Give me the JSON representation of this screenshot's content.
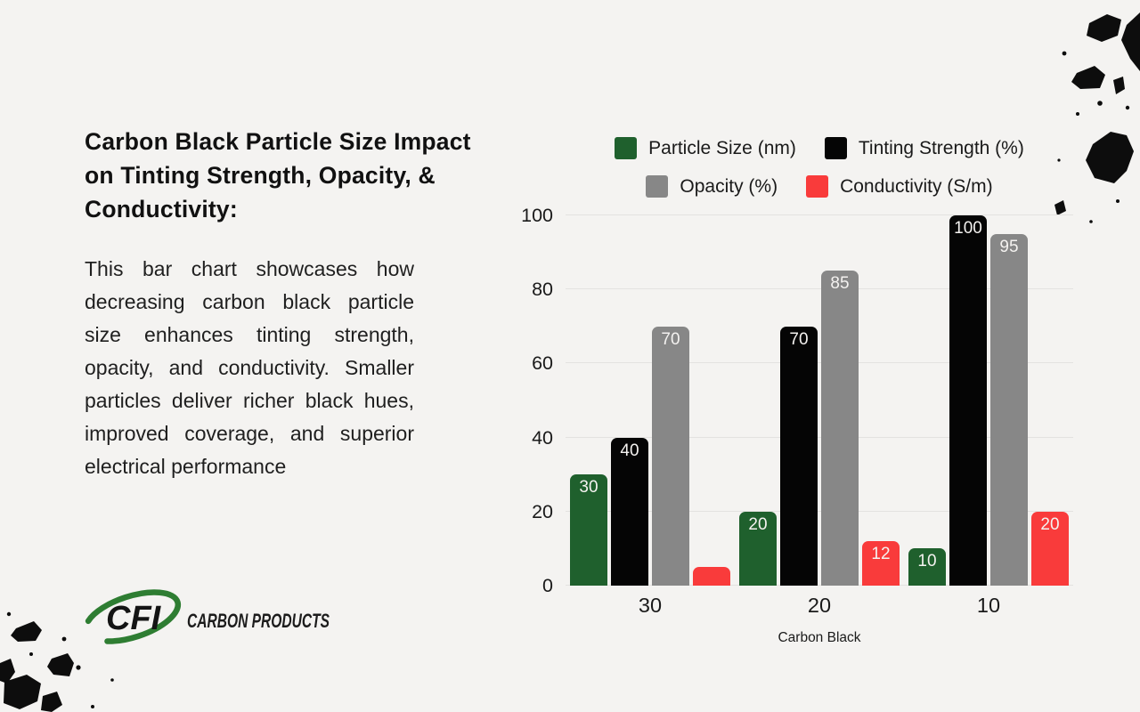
{
  "page": {
    "background": "#f4f3f1"
  },
  "header": {
    "title": "Carbon Black Particle Size Impact on Tinting Strength, Opacity, & Conductivity:"
  },
  "description": "This bar chart showcases how decreasing carbon black particle size enhances tinting strength, opacity, and conductivity. Smaller particles deliver richer black hues, improved coverage, and superior electrical performance",
  "logo": {
    "monogram": "CFI",
    "wordmark": "CARBON PRODUCTS",
    "accent_color": "#2e7d32"
  },
  "chart_data": {
    "type": "bar",
    "title": "",
    "categories": [
      "30",
      "20",
      "10"
    ],
    "series": [
      {
        "name": "Particle Size (nm)",
        "color": "#1f602d",
        "values": [
          30,
          20,
          10
        ],
        "labels": [
          "30",
          "20",
          "10"
        ]
      },
      {
        "name": "Tinting Strength (%)",
        "color": "#050505",
        "values": [
          40,
          70,
          100
        ],
        "labels": [
          "40",
          "70",
          "100"
        ]
      },
      {
        "name": "Opacity (%)",
        "color": "#878787",
        "values": [
          70,
          85,
          95
        ],
        "labels": [
          "70",
          "85",
          "95"
        ]
      },
      {
        "name": "Conductivity (S/m)",
        "color": "#f93b3b",
        "values": [
          5,
          12,
          20
        ],
        "labels": [
          null,
          "12",
          "20"
        ]
      }
    ],
    "xlabel": "Carbon Black",
    "ylabel": "",
    "ylim": [
      0,
      100
    ],
    "yticks": [
      0,
      20,
      40,
      60,
      80,
      100
    ],
    "grid": true,
    "legend_position": "top",
    "legend_rows": [
      [
        0,
        1
      ],
      [
        2,
        3
      ]
    ]
  }
}
